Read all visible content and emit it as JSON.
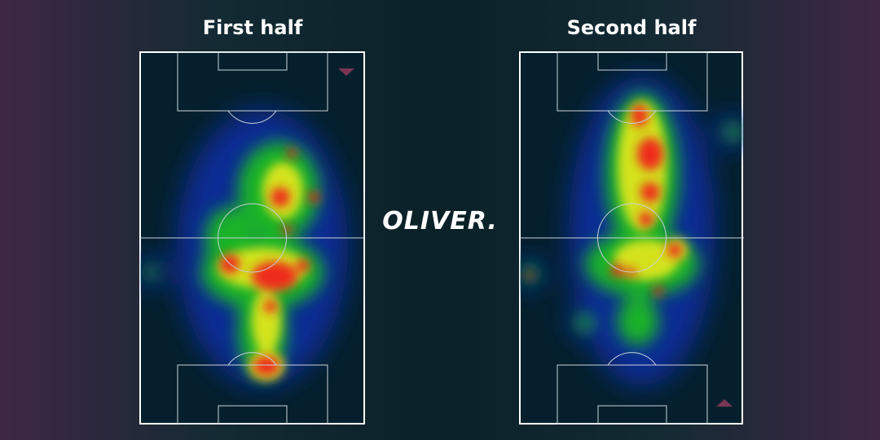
{
  "panels": [
    {
      "title": "First half"
    },
    {
      "title": "Second half"
    }
  ],
  "logo": "OLIVER."
}
